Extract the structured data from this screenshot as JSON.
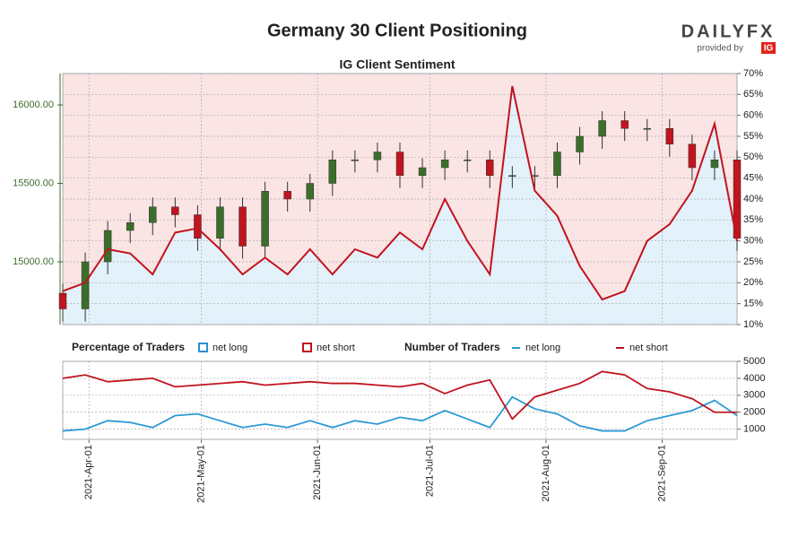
{
  "branding": {
    "logo": "DAILYFX",
    "provided_by": "provided by",
    "badge": "IG"
  },
  "chart_data": [
    {
      "type": "candlestick",
      "title": "Germany 30 Client Positioning",
      "subtitle": "IG Client Sentiment",
      "x": [
        "2021-Mar-25",
        "2021-Mar-31",
        "2021-Apr-06",
        "2021-Apr-12",
        "2021-Apr-18",
        "2021-Apr-24",
        "2021-Apr-30",
        "2021-May-06",
        "2021-May-12",
        "2021-May-18",
        "2021-May-24",
        "2021-May-30",
        "2021-Jun-05",
        "2021-Jun-11",
        "2021-Jun-17",
        "2021-Jun-23",
        "2021-Jun-29",
        "2021-Jul-05",
        "2021-Jul-11",
        "2021-Jul-17",
        "2021-Jul-23",
        "2021-Jul-29",
        "2021-Aug-04",
        "2021-Aug-10",
        "2021-Aug-16",
        "2021-Aug-22",
        "2021-Aug-28",
        "2021-Sep-03",
        "2021-Sep-09",
        "2021-Sep-15",
        "2021-Sep-21"
      ],
      "open": [
        14800,
        14700,
        15000,
        15200,
        15250,
        15350,
        15300,
        15150,
        15350,
        15100,
        15450,
        15400,
        15500,
        15650,
        15650,
        15700,
        15550,
        15600,
        15650,
        15650,
        15550,
        15550,
        15550,
        15700,
        15800,
        15900,
        15850,
        15850,
        15750,
        15600,
        15650
      ],
      "high": [
        14860,
        15060,
        15260,
        15310,
        15410,
        15410,
        15360,
        15410,
        15410,
        15510,
        15510,
        15560,
        15710,
        15710,
        15760,
        15760,
        15660,
        15710,
        15710,
        15710,
        15610,
        15610,
        15760,
        15860,
        15960,
        15960,
        15910,
        15910,
        15810,
        15710,
        15710
      ],
      "low": [
        14620,
        14620,
        14920,
        15120,
        15170,
        15220,
        15070,
        15070,
        15020,
        15020,
        15320,
        15320,
        15420,
        15570,
        15570,
        15470,
        15470,
        15520,
        15570,
        15470,
        15470,
        15470,
        15470,
        15620,
        15720,
        15770,
        15770,
        15670,
        15520,
        15520,
        15070
      ],
      "close": [
        14700,
        15000,
        15200,
        15250,
        15350,
        15300,
        15150,
        15350,
        15100,
        15450,
        15400,
        15500,
        15650,
        15650,
        15700,
        15550,
        15600,
        15650,
        15650,
        15550,
        15550,
        15550,
        15700,
        15800,
        15900,
        15850,
        15850,
        15750,
        15600,
        15650,
        15150
      ],
      "up_color": "#3b6e2a",
      "down_color": "#c0141e",
      "xlim": [
        "2021-Mar-25",
        "2021-Sep-21"
      ],
      "xticks": [
        "2021-Apr-01",
        "2021-May-01",
        "2021-Jun-01",
        "2021-Jul-01",
        "2021-Aug-01",
        "2021-Sep-01"
      ],
      "ylim": [
        14600,
        16200
      ],
      "yticks": [
        {
          "value": 15000,
          "label": "15000.00"
        },
        {
          "value": 15500,
          "label": "15500.00"
        },
        {
          "value": 16000,
          "label": "16000.00"
        }
      ],
      "y2lim": [
        10,
        70
      ],
      "y2ticks": [
        {
          "value": 10,
          "label": "10%"
        },
        {
          "value": 15,
          "label": "15%"
        },
        {
          "value": 20,
          "label": "20%"
        },
        {
          "value": 25,
          "label": "25%"
        },
        {
          "value": 30,
          "label": "30%"
        },
        {
          "value": 35,
          "label": "35%"
        },
        {
          "value": 40,
          "label": "40%"
        },
        {
          "value": 45,
          "label": "45%"
        },
        {
          "value": 50,
          "label": "50%"
        },
        {
          "value": 55,
          "label": "55%"
        },
        {
          "value": 60,
          "label": "60%"
        },
        {
          "value": 65,
          "label": "65%"
        },
        {
          "value": 70,
          "label": "70%"
        }
      ],
      "series": [
        {
          "axis": "y2",
          "color": "#c0141e",
          "values": [
            18,
            20,
            28,
            27,
            22,
            32,
            33,
            28,
            22,
            26,
            22,
            28,
            22,
            28,
            26,
            32,
            28,
            40,
            30,
            22,
            67,
            42,
            36,
            24,
            16,
            18,
            30,
            34,
            42,
            58,
            30
          ]
        }
      ],
      "legend_title": "Percentage of Traders",
      "legend": [
        {
          "name": "net long",
          "color": "#2b8fd6"
        },
        {
          "name": "net short",
          "color": "#c0141e"
        }
      ],
      "grid": true
    },
    {
      "type": "line",
      "legend_title": "Number of Traders",
      "x": [
        "2021-Mar-25",
        "2021-Mar-31",
        "2021-Apr-06",
        "2021-Apr-12",
        "2021-Apr-18",
        "2021-Apr-24",
        "2021-Apr-30",
        "2021-May-06",
        "2021-May-12",
        "2021-May-18",
        "2021-May-24",
        "2021-May-30",
        "2021-Jun-05",
        "2021-Jun-11",
        "2021-Jun-17",
        "2021-Jun-23",
        "2021-Jun-29",
        "2021-Jul-05",
        "2021-Jul-11",
        "2021-Jul-17",
        "2021-Jul-23",
        "2021-Jul-29",
        "2021-Aug-04",
        "2021-Aug-10",
        "2021-Aug-16",
        "2021-Aug-22",
        "2021-Aug-28",
        "2021-Sep-03",
        "2021-Sep-09",
        "2021-Sep-15",
        "2021-Sep-21"
      ],
      "xlim": [
        "2021-Mar-25",
        "2021-Sep-21"
      ],
      "xticks": [
        "2021-Apr-01",
        "2021-May-01",
        "2021-Jun-01",
        "2021-Jul-01",
        "2021-Aug-01",
        "2021-Sep-01"
      ],
      "ylim": [
        400,
        5000
      ],
      "yticks": [
        1000,
        2000,
        3000,
        4000,
        5000
      ],
      "series": [
        {
          "name": "net long",
          "color": "#2b9ad6",
          "values": [
            900,
            1000,
            1500,
            1400,
            1100,
            1800,
            1900,
            1500,
            1100,
            1300,
            1100,
            1500,
            1100,
            1500,
            1300,
            1700,
            1500,
            2100,
            1600,
            1100,
            2900,
            2200,
            1900,
            1200,
            900,
            900,
            1500,
            1800,
            2100,
            2700,
            1800
          ]
        },
        {
          "name": "net short",
          "color": "#c0141e",
          "values": [
            4000,
            4200,
            3800,
            3900,
            4000,
            3500,
            3600,
            3700,
            3800,
            3600,
            3700,
            3800,
            3700,
            3700,
            3600,
            3500,
            3700,
            3100,
            3600,
            3900,
            1600,
            2900,
            3300,
            3700,
            4400,
            4200,
            3400,
            3200,
            2800,
            2000,
            2000
          ]
        }
      ],
      "grid": true
    }
  ]
}
